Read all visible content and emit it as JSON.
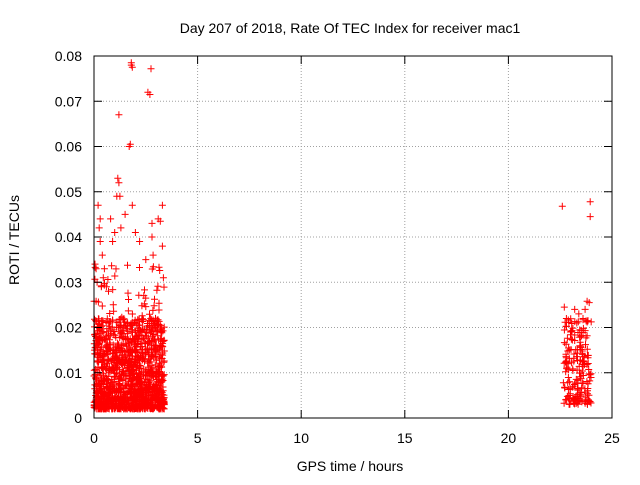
{
  "chart_data": {
    "type": "scatter",
    "title": "Day 207 of 2018, Rate Of TEC Index for receiver mac1",
    "xlabel": "GPS time / hours",
    "ylabel": "ROTI / TECUs",
    "xlim": [
      0,
      25
    ],
    "ylim": [
      0,
      0.08
    ],
    "xticks": [
      0,
      5,
      10,
      15,
      20,
      25
    ],
    "xtick_labels": [
      "0",
      "5",
      "10",
      "15",
      "20",
      "25"
    ],
    "yticks": [
      0,
      0.01,
      0.02,
      0.03,
      0.04,
      0.05,
      0.06,
      0.07,
      0.08
    ],
    "ytick_labels": [
      "0",
      "0.01",
      "0.02",
      "0.03",
      "0.04",
      "0.05",
      "0.06",
      "0.07",
      "0.08"
    ],
    "grid": true,
    "marker": "+",
    "color": "#ff0000",
    "series": [
      {
        "name": "ROTI",
        "clusters": [
          {
            "x_range": [
              0.0,
              3.4
            ],
            "y_range": [
              0.002,
              0.034
            ],
            "count": 1400,
            "dense_y_max": 0.022
          }
        ],
        "x": [
          0.05,
          0.1,
          0.15,
          0.2,
          0.25,
          0.3,
          0.3,
          0.35,
          0.4,
          0.45,
          0.5,
          0.6,
          0.7,
          0.8,
          0.9,
          1.0,
          1.1,
          1.15,
          1.2,
          1.2,
          1.25,
          1.3,
          1.5,
          1.7,
          1.75,
          1.8,
          1.8,
          1.85,
          1.85,
          2.0,
          2.2,
          2.5,
          2.6,
          2.7,
          2.75,
          2.8,
          2.8,
          2.85,
          3.1,
          3.2,
          3.3,
          3.3,
          22.6,
          22.7,
          22.8,
          23.0,
          23.2,
          23.3,
          23.4,
          23.5,
          23.6,
          23.7,
          23.8,
          23.9,
          23.95,
          23.95
        ],
        "y": [
          0.034,
          0.033,
          0.03,
          0.047,
          0.042,
          0.039,
          0.044,
          0.029,
          0.036,
          0.031,
          0.033,
          0.029,
          0.028,
          0.044,
          0.039,
          0.041,
          0.049,
          0.053,
          0.052,
          0.067,
          0.049,
          0.042,
          0.045,
          0.06,
          0.0605,
          0.078,
          0.0785,
          0.0775,
          0.047,
          0.041,
          0.039,
          0.035,
          0.072,
          0.0715,
          0.0772,
          0.043,
          0.04,
          0.036,
          0.044,
          0.0435,
          0.047,
          0.038,
          0.0468,
          0.0245,
          0.022,
          0.019,
          0.024,
          0.021,
          0.023,
          0.018,
          0.022,
          0.024,
          0.0258,
          0.0255,
          0.0478,
          0.0445
        ]
      }
    ]
  }
}
